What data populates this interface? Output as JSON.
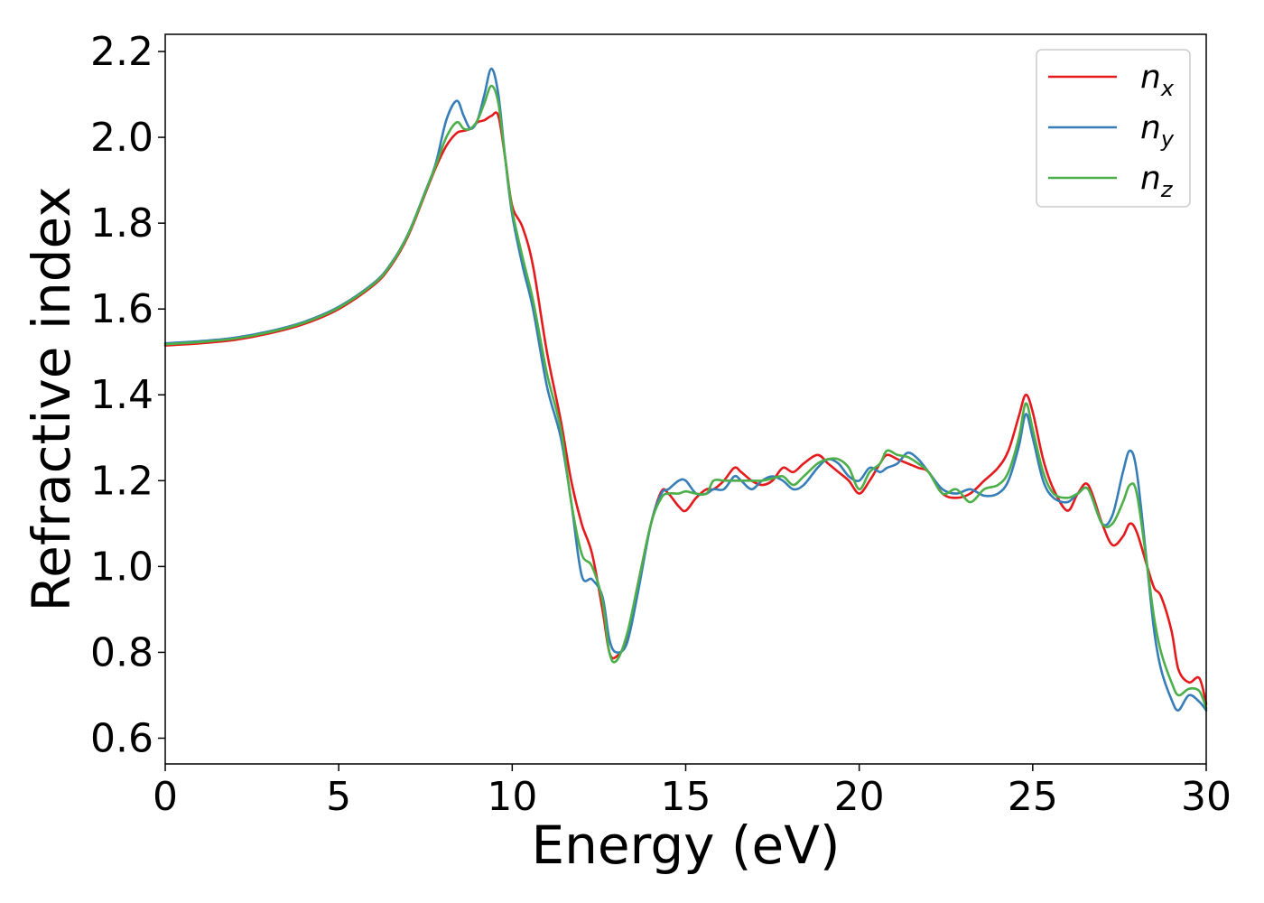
{
  "chart_data": {
    "type": "line",
    "xlabel": "Energy (eV)",
    "ylabel": "Refractive index",
    "xlim": [
      0,
      30
    ],
    "ylim": [
      0.54,
      2.24
    ],
    "xticks": [
      0,
      5,
      10,
      15,
      20,
      25,
      30
    ],
    "yticks": [
      0.6,
      0.8,
      1.0,
      1.2,
      1.4,
      1.6,
      1.8,
      2.0,
      2.2
    ],
    "grid": false,
    "legend_position": "top-right",
    "series": [
      {
        "name": "n_x",
        "label_base": "n",
        "label_sub": "x",
        "color": "#e41a1c",
        "x": [
          0,
          1,
          2,
          3,
          4,
          5,
          6,
          6.5,
          7,
          7.5,
          7.8,
          8.1,
          8.4,
          8.6,
          8.8,
          9.0,
          9.2,
          9.4,
          9.6,
          9.8,
          10.0,
          10.3,
          10.6,
          11.0,
          11.4,
          11.7,
          12.0,
          12.3,
          12.6,
          12.8,
          13.0,
          13.3,
          13.6,
          14.0,
          14.3,
          14.5,
          14.8,
          15.0,
          15.3,
          15.6,
          15.8,
          16.1,
          16.4,
          16.6,
          16.9,
          17.2,
          17.5,
          17.8,
          18.1,
          18.4,
          18.8,
          19.1,
          19.4,
          19.7,
          20.0,
          20.3,
          20.6,
          20.8,
          21.1,
          21.4,
          21.7,
          22.0,
          22.4,
          22.8,
          23.2,
          23.6,
          24.0,
          24.3,
          24.6,
          24.8,
          25.0,
          25.3,
          25.6,
          26.0,
          26.3,
          26.6,
          27.0,
          27.3,
          27.6,
          27.8,
          28.0,
          28.3,
          28.5,
          28.7,
          29.0,
          29.2,
          29.5,
          29.8,
          30.0
        ],
        "y": [
          1.515,
          1.52,
          1.528,
          1.543,
          1.565,
          1.6,
          1.655,
          1.7,
          1.77,
          1.87,
          1.93,
          1.98,
          2.01,
          2.015,
          2.02,
          2.035,
          2.04,
          2.05,
          2.05,
          1.95,
          1.84,
          1.79,
          1.7,
          1.5,
          1.34,
          1.2,
          1.1,
          1.03,
          0.9,
          0.8,
          0.79,
          0.83,
          0.95,
          1.1,
          1.175,
          1.17,
          1.14,
          1.13,
          1.16,
          1.18,
          1.18,
          1.2,
          1.23,
          1.22,
          1.2,
          1.19,
          1.2,
          1.23,
          1.22,
          1.24,
          1.26,
          1.24,
          1.22,
          1.2,
          1.17,
          1.2,
          1.24,
          1.26,
          1.25,
          1.24,
          1.23,
          1.22,
          1.17,
          1.16,
          1.17,
          1.2,
          1.23,
          1.27,
          1.35,
          1.4,
          1.36,
          1.25,
          1.18,
          1.13,
          1.17,
          1.19,
          1.1,
          1.05,
          1.07,
          1.1,
          1.08,
          1.0,
          0.95,
          0.93,
          0.85,
          0.76,
          0.73,
          0.74,
          0.68
        ]
      },
      {
        "name": "n_y",
        "label_base": "n",
        "label_sub": "y",
        "color": "#377eb8",
        "x": [
          0,
          1,
          2,
          3,
          4,
          5,
          6,
          6.5,
          7,
          7.5,
          7.8,
          8.1,
          8.4,
          8.6,
          8.8,
          9.0,
          9.2,
          9.4,
          9.6,
          9.8,
          10.0,
          10.3,
          10.6,
          11.0,
          11.4,
          11.7,
          12.0,
          12.3,
          12.6,
          12.8,
          13.0,
          13.3,
          13.6,
          14.0,
          14.3,
          14.5,
          14.8,
          15.0,
          15.3,
          15.6,
          15.8,
          16.1,
          16.4,
          16.6,
          16.9,
          17.2,
          17.5,
          17.8,
          18.1,
          18.4,
          18.8,
          19.1,
          19.4,
          19.7,
          20.0,
          20.3,
          20.6,
          20.8,
          21.1,
          21.4,
          21.7,
          22.0,
          22.4,
          22.8,
          23.2,
          23.6,
          24.0,
          24.3,
          24.6,
          24.8,
          25.0,
          25.3,
          25.6,
          26.0,
          26.3,
          26.6,
          27.0,
          27.3,
          27.6,
          27.8,
          28.0,
          28.3,
          28.5,
          28.7,
          29.0,
          29.2,
          29.5,
          29.8,
          30.0
        ],
        "y": [
          1.52,
          1.525,
          1.533,
          1.548,
          1.57,
          1.605,
          1.66,
          1.705,
          1.775,
          1.875,
          1.94,
          2.04,
          2.085,
          2.05,
          2.02,
          2.04,
          2.1,
          2.16,
          2.1,
          1.95,
          1.82,
          1.7,
          1.6,
          1.42,
          1.3,
          1.15,
          0.98,
          0.97,
          0.93,
          0.83,
          0.8,
          0.82,
          0.93,
          1.1,
          1.17,
          1.18,
          1.2,
          1.2,
          1.17,
          1.17,
          1.18,
          1.18,
          1.21,
          1.2,
          1.18,
          1.2,
          1.21,
          1.2,
          1.18,
          1.19,
          1.23,
          1.25,
          1.24,
          1.21,
          1.2,
          1.23,
          1.22,
          1.23,
          1.24,
          1.265,
          1.25,
          1.22,
          1.18,
          1.17,
          1.18,
          1.165,
          1.17,
          1.2,
          1.28,
          1.355,
          1.3,
          1.2,
          1.16,
          1.15,
          1.17,
          1.18,
          1.1,
          1.12,
          1.22,
          1.27,
          1.22,
          1.0,
          0.85,
          0.76,
          0.69,
          0.665,
          0.7,
          0.685,
          0.665
        ]
      },
      {
        "name": "n_z",
        "label_base": "n",
        "label_sub": "z",
        "color": "#4daf4a",
        "x": [
          0,
          1,
          2,
          3,
          4,
          5,
          6,
          6.5,
          7,
          7.5,
          7.8,
          8.1,
          8.4,
          8.6,
          8.8,
          9.0,
          9.2,
          9.4,
          9.6,
          9.8,
          10.0,
          10.3,
          10.6,
          11.0,
          11.4,
          11.7,
          12.0,
          12.3,
          12.6,
          12.8,
          13.0,
          13.3,
          13.6,
          14.0,
          14.3,
          14.5,
          14.8,
          15.0,
          15.3,
          15.6,
          15.8,
          16.1,
          16.4,
          16.6,
          16.9,
          17.2,
          17.5,
          17.8,
          18.1,
          18.4,
          18.8,
          19.1,
          19.4,
          19.7,
          20.0,
          20.3,
          20.6,
          20.8,
          21.1,
          21.4,
          21.7,
          22.0,
          22.4,
          22.8,
          23.2,
          23.6,
          24.0,
          24.3,
          24.6,
          24.8,
          25.0,
          25.3,
          25.6,
          26.0,
          26.3,
          26.6,
          27.0,
          27.3,
          27.6,
          27.8,
          28.0,
          28.3,
          28.5,
          28.7,
          29.0,
          29.2,
          29.5,
          29.8,
          30.0
        ],
        "y": [
          1.518,
          1.523,
          1.531,
          1.546,
          1.568,
          1.603,
          1.658,
          1.703,
          1.773,
          1.873,
          1.935,
          2.0,
          2.035,
          2.02,
          2.02,
          2.04,
          2.08,
          2.12,
          2.08,
          1.95,
          1.83,
          1.72,
          1.62,
          1.45,
          1.32,
          1.15,
          1.03,
          1.0,
          0.92,
          0.8,
          0.78,
          0.84,
          0.95,
          1.1,
          1.16,
          1.17,
          1.17,
          1.175,
          1.17,
          1.17,
          1.2,
          1.2,
          1.2,
          1.2,
          1.2,
          1.2,
          1.205,
          1.21,
          1.19,
          1.21,
          1.24,
          1.25,
          1.25,
          1.23,
          1.18,
          1.22,
          1.24,
          1.27,
          1.26,
          1.255,
          1.24,
          1.22,
          1.17,
          1.18,
          1.15,
          1.18,
          1.19,
          1.22,
          1.3,
          1.38,
          1.32,
          1.22,
          1.17,
          1.16,
          1.17,
          1.18,
          1.1,
          1.1,
          1.15,
          1.19,
          1.17,
          1.0,
          0.88,
          0.8,
          0.73,
          0.7,
          0.715,
          0.71,
          0.67
        ]
      }
    ]
  }
}
